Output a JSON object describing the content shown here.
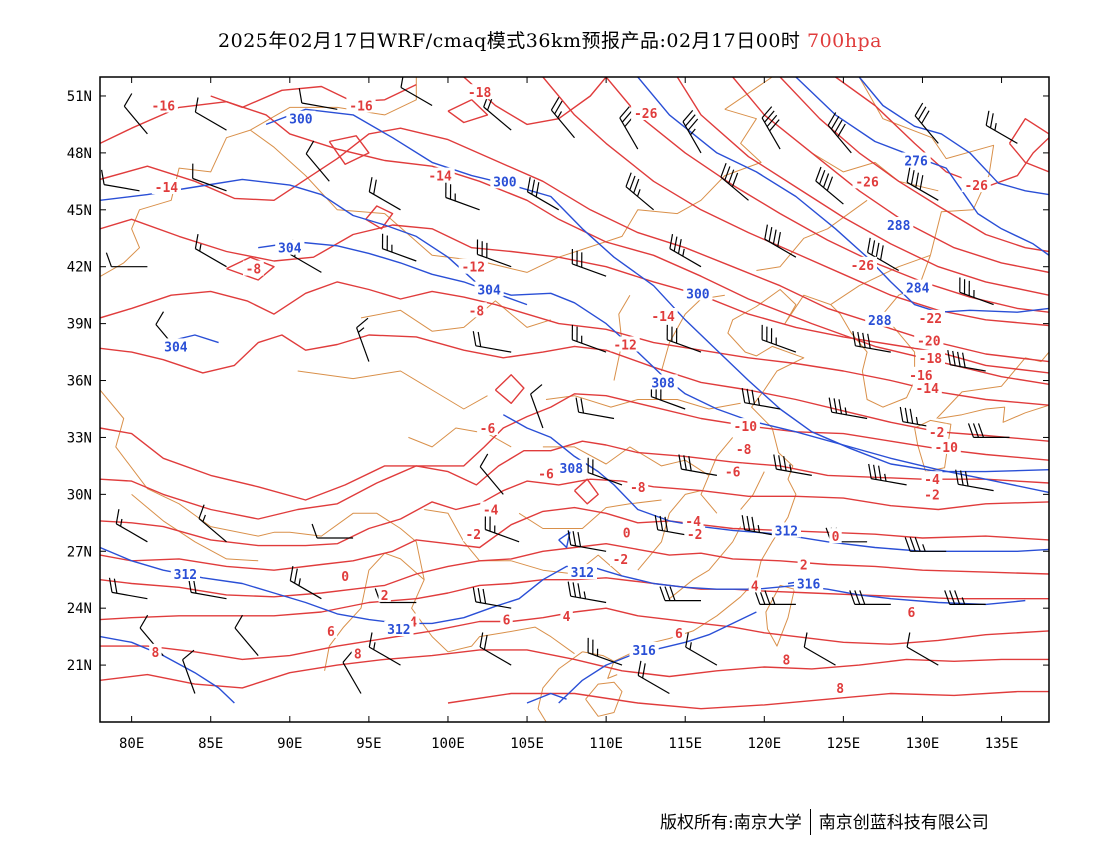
{
  "title": {
    "main": "2025年02月17日WRF/cmaq模式36km预报产品:02月17日00时",
    "level": "700hpa"
  },
  "map": {
    "lon_range": [
      78,
      138
    ],
    "lat_range": [
      18,
      52
    ],
    "lat_ticks": [
      {
        "value": 51,
        "label": "51N"
      },
      {
        "value": 48,
        "label": "48N"
      },
      {
        "value": 45,
        "label": "45N"
      },
      {
        "value": 42,
        "label": "42N"
      },
      {
        "value": 39,
        "label": "39N"
      },
      {
        "value": 36,
        "label": "36N"
      },
      {
        "value": 33,
        "label": "33N"
      },
      {
        "value": 30,
        "label": "30N"
      },
      {
        "value": 27,
        "label": "27N"
      },
      {
        "value": 24,
        "label": "24N"
      },
      {
        "value": 21,
        "label": "21N"
      }
    ],
    "lon_ticks": [
      {
        "value": 80,
        "label": "80E"
      },
      {
        "value": 85,
        "label": "85E"
      },
      {
        "value": 90,
        "label": "90E"
      },
      {
        "value": 95,
        "label": "95E"
      },
      {
        "value": 100,
        "label": "100E"
      },
      {
        "value": 105,
        "label": "105E"
      },
      {
        "value": 110,
        "label": "110E"
      },
      {
        "value": 115,
        "label": "115E"
      },
      {
        "value": 120,
        "label": "120E"
      },
      {
        "value": 125,
        "label": "125E"
      },
      {
        "value": 130,
        "label": "130E"
      },
      {
        "value": 135,
        "label": "135E"
      }
    ],
    "colors": {
      "temperature": "#e03c3c",
      "height": "#2a4fd6",
      "boundary": "#d9904a",
      "barb": "#000000"
    },
    "temperature_labels": [
      {
        "text": "-16",
        "lon": 82,
        "lat": 50.5
      },
      {
        "text": "-16",
        "lon": 94.5,
        "lat": 50.5
      },
      {
        "text": "-18",
        "lon": 102,
        "lat": 51.2
      },
      {
        "text": "-26",
        "lon": 112.5,
        "lat": 50.1
      },
      {
        "text": "-14",
        "lon": 82.2,
        "lat": 46.2
      },
      {
        "text": "-14",
        "lon": 99.5,
        "lat": 46.8
      },
      {
        "text": "-26",
        "lon": 126.5,
        "lat": 46.5
      },
      {
        "text": "-26",
        "lon": 133.4,
        "lat": 46.3
      },
      {
        "text": "-8",
        "lon": 87.7,
        "lat": 41.9
      },
      {
        "text": "-12",
        "lon": 101.6,
        "lat": 42.0
      },
      {
        "text": "-8",
        "lon": 101.8,
        "lat": 39.7
      },
      {
        "text": "-14",
        "lon": 113.6,
        "lat": 39.4
      },
      {
        "text": "-12",
        "lon": 111.2,
        "lat": 37.9
      },
      {
        "text": "-26",
        "lon": 126.2,
        "lat": 42.1
      },
      {
        "text": "-22",
        "lon": 130.5,
        "lat": 39.3
      },
      {
        "text": "-20",
        "lon": 130.4,
        "lat": 38.1
      },
      {
        "text": "-18",
        "lon": 130.5,
        "lat": 37.2
      },
      {
        "text": "-16",
        "lon": 129.9,
        "lat": 36.3
      },
      {
        "text": "-14",
        "lon": 130.3,
        "lat": 35.6
      },
      {
        "text": "-6",
        "lon": 102.5,
        "lat": 33.5
      },
      {
        "text": "-10",
        "lon": 118.8,
        "lat": 33.6
      },
      {
        "text": "-8",
        "lon": 118.7,
        "lat": 32.4
      },
      {
        "text": "-2",
        "lon": 130.9,
        "lat": 33.3
      },
      {
        "text": "-10",
        "lon": 131.5,
        "lat": 32.5
      },
      {
        "text": "-6",
        "lon": 106.2,
        "lat": 31.1
      },
      {
        "text": "-6",
        "lon": 118.0,
        "lat": 31.2
      },
      {
        "text": "-8",
        "lon": 112.0,
        "lat": 30.4
      },
      {
        "text": "-4",
        "lon": 130.6,
        "lat": 30.8
      },
      {
        "text": "-4",
        "lon": 102.7,
        "lat": 29.2
      },
      {
        "text": "-4",
        "lon": 115.5,
        "lat": 28.6
      },
      {
        "text": "-2",
        "lon": 130.6,
        "lat": 30.0
      },
      {
        "text": "-2",
        "lon": 101.6,
        "lat": 27.9
      },
      {
        "text": "-2",
        "lon": 115.6,
        "lat": 27.9
      },
      {
        "text": "0",
        "lon": 111.3,
        "lat": 28.0
      },
      {
        "text": "0",
        "lon": 124.5,
        "lat": 27.8
      },
      {
        "text": "-2",
        "lon": 110.9,
        "lat": 26.6
      },
      {
        "text": "2",
        "lon": 122.5,
        "lat": 26.3
      },
      {
        "text": "0",
        "lon": 93.5,
        "lat": 25.7
      },
      {
        "text": "2",
        "lon": 96,
        "lat": 24.7
      },
      {
        "text": "4",
        "lon": 97.8,
        "lat": 23.3
      },
      {
        "text": "4",
        "lon": 107.5,
        "lat": 23.6
      },
      {
        "text": "4",
        "lon": 119.4,
        "lat": 25.2
      },
      {
        "text": "6",
        "lon": 92.6,
        "lat": 22.8
      },
      {
        "text": "6",
        "lon": 103.7,
        "lat": 23.4
      },
      {
        "text": "6",
        "lon": 114.6,
        "lat": 22.7
      },
      {
        "text": "6",
        "lon": 129.3,
        "lat": 23.8
      },
      {
        "text": "8",
        "lon": 94.3,
        "lat": 21.6
      },
      {
        "text": "8",
        "lon": 81.5,
        "lat": 21.7
      },
      {
        "text": "8",
        "lon": 121.4,
        "lat": 21.3
      },
      {
        "text": "8",
        "lon": 124.8,
        "lat": 19.8
      }
    ],
    "height_labels": [
      {
        "text": "300",
        "lon": 90.7,
        "lat": 49.8
      },
      {
        "text": "300",
        "lon": 103.6,
        "lat": 46.5
      },
      {
        "text": "276",
        "lon": 129.6,
        "lat": 47.6
      },
      {
        "text": "288",
        "lon": 128.5,
        "lat": 44.2
      },
      {
        "text": "304",
        "lon": 90,
        "lat": 43.0
      },
      {
        "text": "304",
        "lon": 102.6,
        "lat": 40.8
      },
      {
        "text": "300",
        "lon": 115.8,
        "lat": 40.6
      },
      {
        "text": "284",
        "lon": 129.7,
        "lat": 40.9
      },
      {
        "text": "288",
        "lon": 127.3,
        "lat": 39.2
      },
      {
        "text": "304",
        "lon": 82.8,
        "lat": 37.8
      },
      {
        "text": "308",
        "lon": 113.6,
        "lat": 35.9
      },
      {
        "text": "308",
        "lon": 107.8,
        "lat": 31.4
      },
      {
        "text": "312",
        "lon": 121.4,
        "lat": 28.1
      },
      {
        "text": "312",
        "lon": 83.4,
        "lat": 25.8
      },
      {
        "text": "312",
        "lon": 108.5,
        "lat": 25.9
      },
      {
        "text": "316",
        "lon": 122.8,
        "lat": 25.3
      },
      {
        "text": "312",
        "lon": 96.9,
        "lat": 22.9
      },
      {
        "text": "316",
        "lon": 112.4,
        "lat": 21.8
      }
    ],
    "wind_barbs": [
      {
        "lon": 81,
        "lat": 49,
        "dir": 320,
        "speed": 10
      },
      {
        "lon": 86,
        "lat": 49.2,
        "dir": 300,
        "speed": 10
      },
      {
        "lon": 93,
        "lat": 50.3,
        "dir": 280,
        "speed": 10
      },
      {
        "lon": 99,
        "lat": 50.5,
        "dir": 300,
        "speed": 10
      },
      {
        "lon": 104,
        "lat": 49.2,
        "dir": 310,
        "speed": 20
      },
      {
        "lon": 108,
        "lat": 48.8,
        "dir": 320,
        "speed": 25
      },
      {
        "lon": 112,
        "lat": 48.2,
        "dir": 330,
        "speed": 30
      },
      {
        "lon": 116,
        "lat": 48,
        "dir": 330,
        "speed": 35
      },
      {
        "lon": 121,
        "lat": 48.2,
        "dir": 330,
        "speed": 40
      },
      {
        "lon": 125.5,
        "lat": 48,
        "dir": 320,
        "speed": 40
      },
      {
        "lon": 131,
        "lat": 48.5,
        "dir": 320,
        "speed": 30
      },
      {
        "lon": 136,
        "lat": 48.5,
        "dir": 300,
        "speed": 25
      },
      {
        "lon": 80.5,
        "lat": 46,
        "dir": 280,
        "speed": 10
      },
      {
        "lon": 86,
        "lat": 46,
        "dir": 290,
        "speed": 10
      },
      {
        "lon": 92.5,
        "lat": 46.5,
        "dir": 320,
        "speed": 10
      },
      {
        "lon": 97,
        "lat": 45,
        "dir": 300,
        "speed": 20
      },
      {
        "lon": 102,
        "lat": 45,
        "dir": 290,
        "speed": 25
      },
      {
        "lon": 107,
        "lat": 45,
        "dir": 300,
        "speed": 30
      },
      {
        "lon": 113,
        "lat": 45,
        "dir": 310,
        "speed": 35
      },
      {
        "lon": 119,
        "lat": 45.5,
        "dir": 310,
        "speed": 40
      },
      {
        "lon": 125,
        "lat": 45.3,
        "dir": 310,
        "speed": 40
      },
      {
        "lon": 131,
        "lat": 45.5,
        "dir": 300,
        "speed": 40
      },
      {
        "lon": 81,
        "lat": 42,
        "dir": 270,
        "speed": 10
      },
      {
        "lon": 86,
        "lat": 42,
        "dir": 300,
        "speed": 15
      },
      {
        "lon": 92,
        "lat": 41.7,
        "dir": 300,
        "speed": 20
      },
      {
        "lon": 98,
        "lat": 42.3,
        "dir": 290,
        "speed": 25
      },
      {
        "lon": 104,
        "lat": 42,
        "dir": 290,
        "speed": 30
      },
      {
        "lon": 110,
        "lat": 41.5,
        "dir": 290,
        "speed": 30
      },
      {
        "lon": 116,
        "lat": 42,
        "dir": 300,
        "speed": 35
      },
      {
        "lon": 122,
        "lat": 42.5,
        "dir": 300,
        "speed": 40
      },
      {
        "lon": 128.5,
        "lat": 41.8,
        "dir": 300,
        "speed": 40
      },
      {
        "lon": 134.5,
        "lat": 40,
        "dir": 290,
        "speed": 35
      },
      {
        "lon": 83,
        "lat": 37.5,
        "dir": 320,
        "speed": 10
      },
      {
        "lon": 95,
        "lat": 37,
        "dir": 340,
        "speed": 15
      },
      {
        "lon": 104,
        "lat": 37.5,
        "dir": 280,
        "speed": 20
      },
      {
        "lon": 110,
        "lat": 37.5,
        "dir": 290,
        "speed": 25
      },
      {
        "lon": 116,
        "lat": 37.5,
        "dir": 290,
        "speed": 30
      },
      {
        "lon": 122,
        "lat": 37.5,
        "dir": 290,
        "speed": 35
      },
      {
        "lon": 128,
        "lat": 37.5,
        "dir": 280,
        "speed": 40
      },
      {
        "lon": 134,
        "lat": 36.5,
        "dir": 280,
        "speed": 40
      },
      {
        "lon": 106,
        "lat": 33.5,
        "dir": 340,
        "speed": 10
      },
      {
        "lon": 110.5,
        "lat": 34,
        "dir": 280,
        "speed": 20
      },
      {
        "lon": 115,
        "lat": 34.5,
        "dir": 290,
        "speed": 30
      },
      {
        "lon": 121,
        "lat": 34.5,
        "dir": 280,
        "speed": 35
      },
      {
        "lon": 126.5,
        "lat": 34,
        "dir": 280,
        "speed": 35
      },
      {
        "lon": 131,
        "lat": 33.5,
        "dir": 280,
        "speed": 35
      },
      {
        "lon": 135.5,
        "lat": 33,
        "dir": 270,
        "speed": 30
      },
      {
        "lon": 103.5,
        "lat": 30,
        "dir": 320,
        "speed": 10
      },
      {
        "lon": 111,
        "lat": 30.5,
        "dir": 290,
        "speed": 20
      },
      {
        "lon": 117,
        "lat": 31,
        "dir": 280,
        "speed": 30
      },
      {
        "lon": 123,
        "lat": 31,
        "dir": 280,
        "speed": 35
      },
      {
        "lon": 129,
        "lat": 30.5,
        "dir": 280,
        "speed": 35
      },
      {
        "lon": 134.5,
        "lat": 30.2,
        "dir": 280,
        "speed": 30
      },
      {
        "lon": 81,
        "lat": 27.5,
        "dir": 300,
        "speed": 15
      },
      {
        "lon": 86,
        "lat": 27.5,
        "dir": 310,
        "speed": 15
      },
      {
        "lon": 94,
        "lat": 27.7,
        "dir": 270,
        "speed": 10
      },
      {
        "lon": 104.5,
        "lat": 27.5,
        "dir": 290,
        "speed": 25
      },
      {
        "lon": 110,
        "lat": 27,
        "dir": 280,
        "speed": 30
      },
      {
        "lon": 115.5,
        "lat": 27.8,
        "dir": 280,
        "speed": 30
      },
      {
        "lon": 121,
        "lat": 27.8,
        "dir": 280,
        "speed": 35
      },
      {
        "lon": 126.5,
        "lat": 27.5,
        "dir": 270,
        "speed": 30
      },
      {
        "lon": 131.5,
        "lat": 27,
        "dir": 270,
        "speed": 35
      },
      {
        "lon": 81,
        "lat": 24.5,
        "dir": 280,
        "speed": 20
      },
      {
        "lon": 86,
        "lat": 24.5,
        "dir": 280,
        "speed": 20
      },
      {
        "lon": 92,
        "lat": 24.5,
        "dir": 300,
        "speed": 25
      },
      {
        "lon": 98,
        "lat": 24.3,
        "dir": 270,
        "speed": 25
      },
      {
        "lon": 104,
        "lat": 24,
        "dir": 280,
        "speed": 30
      },
      {
        "lon": 110,
        "lat": 24.3,
        "dir": 280,
        "speed": 35
      },
      {
        "lon": 116,
        "lat": 24.4,
        "dir": 270,
        "speed": 30
      },
      {
        "lon": 122,
        "lat": 24.2,
        "dir": 270,
        "speed": 35
      },
      {
        "lon": 128,
        "lat": 24.2,
        "dir": 270,
        "speed": 30
      },
      {
        "lon": 134,
        "lat": 24.2,
        "dir": 270,
        "speed": 35
      },
      {
        "lon": 82,
        "lat": 21.5,
        "dir": 320,
        "speed": 10
      },
      {
        "lon": 88,
        "lat": 21.5,
        "dir": 320,
        "speed": 10
      },
      {
        "lon": 97,
        "lat": 21,
        "dir": 300,
        "speed": 15
      },
      {
        "lon": 104,
        "lat": 21,
        "dir": 300,
        "speed": 20
      },
      {
        "lon": 111,
        "lat": 21,
        "dir": 290,
        "speed": 25
      },
      {
        "lon": 117,
        "lat": 21,
        "dir": 300,
        "speed": 15
      },
      {
        "lon": 124.5,
        "lat": 21,
        "dir": 300,
        "speed": 10
      },
      {
        "lon": 131,
        "lat": 21,
        "dir": 300,
        "speed": 10
      },
      {
        "lon": 84,
        "lat": 19.5,
        "dir": 340,
        "speed": 10
      },
      {
        "lon": 94.5,
        "lat": 19.5,
        "dir": 330,
        "speed": 10
      },
      {
        "lon": 114,
        "lat": 19.5,
        "dir": 300,
        "speed": 20
      }
    ]
  },
  "footer": {
    "left": "版权所有:南京大学",
    "right": "南京创蓝科技有限公司"
  }
}
